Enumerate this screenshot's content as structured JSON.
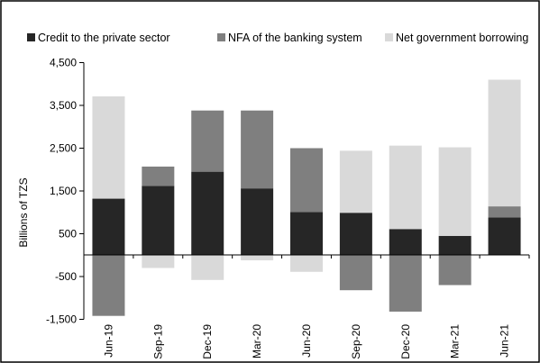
{
  "chart_data": {
    "type": "bar",
    "stacked": true,
    "categories": [
      "Jun-19",
      "Sep-19",
      "Dec-19",
      "Mar-20",
      "Jun-20",
      "Sep-20",
      "Dec-20",
      "Mar-21",
      "Jun-21"
    ],
    "series": [
      {
        "name": "Credit to the private sector",
        "color": "#262626",
        "values": [
          1320,
          1620,
          1950,
          1560,
          1010,
          990,
          610,
          450,
          880
        ]
      },
      {
        "name": "NFA of the banking system",
        "color": "#7f7f7f",
        "values": [
          -1420,
          450,
          1430,
          1820,
          1490,
          -820,
          -1320,
          -700,
          260
        ]
      },
      {
        "name": "Net government borrowing",
        "color": "#d9d9d9",
        "values": [
          2390,
          -300,
          -580,
          -120,
          -390,
          1450,
          1950,
          2070,
          2960
        ]
      }
    ],
    "ylabel": "Billions of TZS",
    "ylim": [
      -1500,
      4500
    ],
    "yticks": [
      -1500,
      -500,
      500,
      1500,
      2500,
      3500,
      4500
    ],
    "ytick_labels": [
      "-1,500",
      "-500",
      "500",
      "1,500",
      "2,500",
      "3,500",
      "4,500"
    ],
    "legend_position": "top",
    "grid": false
  }
}
